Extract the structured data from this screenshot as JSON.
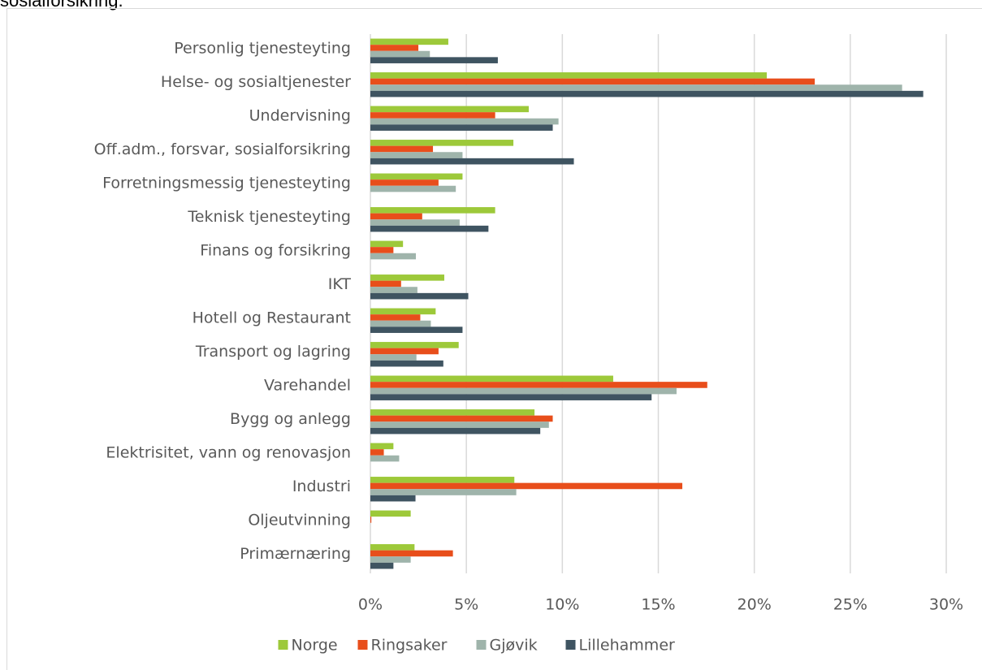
{
  "chart_data": {
    "type": "bar",
    "orientation": "horizontal",
    "title": "sosialforsikring.",
    "categories": [
      "Personlig tjenesteyting",
      "Helse- og sosialtjenester",
      "Undervisning",
      "Off.adm., forsvar, sosialforsikring",
      "Forretningsmessig tjenesteyting",
      "Teknisk tjenesteyting",
      "Finans og forsikring",
      "IKT",
      "Hotell og Restaurant",
      "Transport og lagring",
      "Varehandel",
      "Bygg og anlegg",
      "Elektrisitet, vann og renovasjon",
      "Industri",
      "Oljeutvinning",
      "Primærnæring"
    ],
    "series": [
      {
        "name": "Norge",
        "color": "#9dc93a",
        "values": [
          4.06,
          20.65,
          8.25,
          7.45,
          4.8,
          6.5,
          1.7,
          3.85,
          3.4,
          4.6,
          12.65,
          8.55,
          1.2,
          7.5,
          2.1,
          2.3
        ]
      },
      {
        "name": "Ringsaker",
        "color": "#e84e1b",
        "values": [
          2.5,
          23.15,
          6.5,
          3.26,
          3.55,
          2.7,
          1.2,
          1.6,
          2.6,
          3.55,
          17.55,
          9.5,
          0.7,
          16.25,
          0.05,
          4.3
        ]
      },
      {
        "name": "Gjøvik",
        "color": "#9fb4ab",
        "values": [
          3.1,
          27.7,
          9.8,
          4.8,
          4.45,
          4.65,
          2.37,
          2.45,
          3.15,
          2.4,
          15.95,
          9.3,
          1.5,
          7.6,
          null,
          2.1
        ]
      },
      {
        "name": "Lillehammer",
        "color": "#3f5461",
        "values": [
          6.64,
          28.8,
          9.5,
          10.6,
          null,
          6.15,
          null,
          5.1,
          4.8,
          3.8,
          14.65,
          8.85,
          null,
          2.35,
          null,
          1.2
        ]
      }
    ],
    "xlim": [
      0,
      30
    ],
    "xticks": [
      {
        "value": 0,
        "label": "0%"
      },
      {
        "value": 5,
        "label": "5%"
      },
      {
        "value": 10,
        "label": "10%"
      },
      {
        "value": 15,
        "label": "15%"
      },
      {
        "value": 20,
        "label": "20%"
      },
      {
        "value": 25,
        "label": "25%"
      },
      {
        "value": 30,
        "label": "30%"
      }
    ],
    "grid": true,
    "legend": "bottom"
  }
}
